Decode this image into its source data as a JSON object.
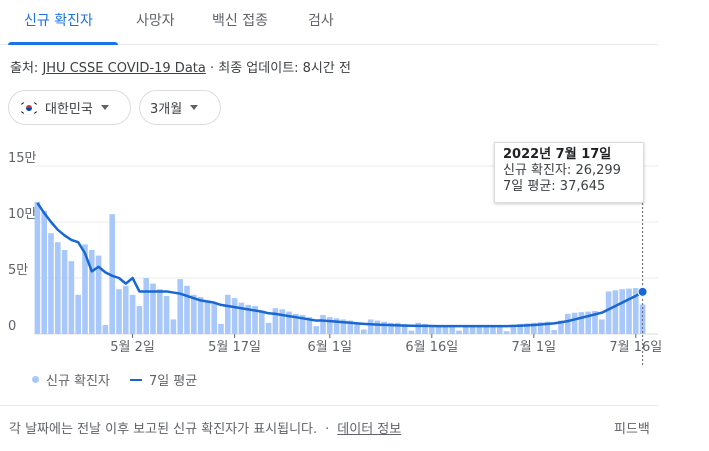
{
  "tabs": [
    {
      "label": "신규 확진자",
      "active": true
    },
    {
      "label": "사망자",
      "active": false
    },
    {
      "label": "백신 접종",
      "active": false
    },
    {
      "label": "검사",
      "active": false
    }
  ],
  "source": {
    "prefix": "출처: ",
    "link": "JHU CSSE COVID-19 Data",
    "suffix": " · 최종 업데이트: 8시간 전"
  },
  "filters": {
    "country": "대한민국",
    "range": "3개월"
  },
  "tooltip": {
    "date": "2022년 7월 17일",
    "new_cases": "신규 확진자: 26,299",
    "avg7": "7일 평균: 37,645"
  },
  "legend": {
    "bars": "신규 확진자",
    "line": "7일 평균"
  },
  "footer": {
    "note": "각 날짜에는 전날 이후 보고된 신규 확진자가 표시됩니다.",
    "separator": "·",
    "link": "데이터 정보",
    "feedback": "피드백"
  },
  "colors": {
    "accent": "#1a73e8",
    "bar": "#a8c7fa",
    "line": "#1967d2"
  },
  "chart_data": {
    "type": "bar",
    "ylim": [
      0,
      150000
    ],
    "yticks": [
      {
        "value": 0,
        "label": "0"
      },
      {
        "value": 50000,
        "label": "5만"
      },
      {
        "value": 100000,
        "label": "10만"
      },
      {
        "value": 150000,
        "label": "15만"
      }
    ],
    "xticks": [
      {
        "index": 14,
        "label": "5월 2일"
      },
      {
        "index": 29,
        "label": "5월 17일"
      },
      {
        "index": 43,
        "label": "6월 1일"
      },
      {
        "index": 58,
        "label": "6월 16일"
      },
      {
        "index": 73,
        "label": "7월 1일"
      },
      {
        "index": 88,
        "label": "7월 16일"
      }
    ],
    "series": [
      {
        "name": "신규 확진자",
        "values": [
          118000,
          110000,
          90000,
          82000,
          75000,
          65000,
          35000,
          80000,
          75000,
          70000,
          8000,
          107000,
          40000,
          43000,
          35000,
          25000,
          50000,
          45000,
          40000,
          34000,
          13000,
          49000,
          43000,
          35000,
          33000,
          30000,
          27000,
          9000,
          35000,
          32000,
          28000,
          26000,
          25000,
          20000,
          10000,
          23000,
          22000,
          20000,
          18000,
          17000,
          15000,
          7000,
          17000,
          15000,
          14000,
          13000,
          12000,
          10000,
          4000,
          13000,
          12000,
          11000,
          10000,
          10000,
          9000,
          3000,
          10000,
          9000,
          8000,
          8000,
          7000,
          7000,
          3000,
          7500,
          7200,
          7000,
          6800,
          6500,
          6200,
          2500,
          7000,
          9000,
          9500,
          10000,
          10500,
          11000,
          3500,
          12000,
          18000,
          19000,
          19500,
          20000,
          20500,
          13000,
          38000,
          39000,
          40000,
          40500,
          41000,
          26299
        ]
      },
      {
        "name": "7일 평균",
        "values": [
          117000,
          108000,
          100000,
          93000,
          88000,
          84000,
          82000,
          72000,
          56000,
          60000,
          55000,
          52000,
          50000,
          45000,
          50000,
          38000,
          38000,
          38000,
          38000,
          38000,
          37000,
          36000,
          34000,
          32000,
          30000,
          29000,
          28000,
          26000,
          25000,
          24000,
          23000,
          22000,
          21000,
          20000,
          18500,
          18000,
          17000,
          16000,
          15000,
          14000,
          13000,
          12000,
          12000,
          11500,
          11000,
          10500,
          10000,
          9500,
          9000,
          8700,
          8400,
          8100,
          7900,
          7700,
          7500,
          7400,
          7300,
          7200,
          7100,
          7000,
          7000,
          7000,
          7000,
          7000,
          7000,
          7000,
          7000,
          7000,
          7000,
          7000,
          7200,
          7400,
          7700,
          8000,
          8500,
          9000,
          9500,
          10500,
          11500,
          13000,
          14500,
          16000,
          17500,
          19000,
          22000,
          25000,
          28000,
          31000,
          34000,
          37645
        ]
      }
    ]
  }
}
